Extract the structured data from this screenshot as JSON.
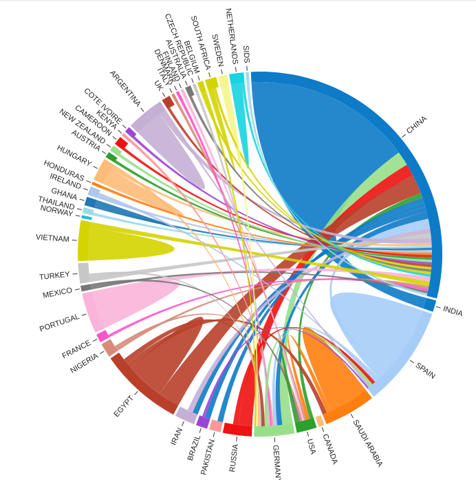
{
  "chart_data": {
    "type": "chord",
    "title": "",
    "groups": [
      {
        "name": "CHINA",
        "value": 116,
        "color": "#0d7bc8"
      },
      {
        "name": "INDIA",
        "value": 4,
        "color": "#0d7bc8"
      },
      {
        "name": "SPAIN",
        "value": 35,
        "color": "#a6cdf8"
      },
      {
        "name": "SAUDI ARABIA",
        "value": 18,
        "color": "#ff7f0e"
      },
      {
        "name": "CANADA",
        "value": 2,
        "color": "#ffbb78"
      },
      {
        "name": "USA",
        "value": 7,
        "color": "#2ca02c"
      },
      {
        "name": "GERMANY",
        "value": 14,
        "color": "#98df8a"
      },
      {
        "name": "RUSSIA",
        "value": 10,
        "color": "#ee1111"
      },
      {
        "name": "PAKISTAN",
        "value": 4,
        "color": "#ff9896"
      },
      {
        "name": "BRAZIL",
        "value": 4,
        "color": "#9b45d8"
      },
      {
        "name": "IRAN",
        "value": 7,
        "color": "#c5b0d5"
      },
      {
        "name": "EGYPT",
        "value": 29,
        "color": "#b8402a"
      },
      {
        "name": "NIGERIA",
        "value": 5,
        "color": "#d98a78"
      },
      {
        "name": "FRANCE",
        "value": 3,
        "color": "#ff55cc"
      },
      {
        "name": "PORTUGAL",
        "value": 14,
        "color": "#fbb4d9"
      },
      {
        "name": "MEXICO",
        "value": 2,
        "color": "#777777"
      },
      {
        "name": "TURKEY",
        "value": 7,
        "color": "#c7c7c7"
      },
      {
        "name": "VIETNAM",
        "value": 14,
        "color": "#d4d400"
      },
      {
        "name": "NORWAY",
        "value": 1,
        "color": "#17becf"
      },
      {
        "name": "THAILAND",
        "value": 2,
        "color": "#9edae5"
      },
      {
        "name": "GHANA",
        "value": 3,
        "color": "#1f77b4"
      },
      {
        "name": "IRELAND",
        "value": 3,
        "color": "#aec7e8"
      },
      {
        "name": "HONDURAS",
        "value": 1,
        "color": "#ff7f0e"
      },
      {
        "name": "HUNGARY",
        "value": 8,
        "color": "#ffbb78"
      },
      {
        "name": "AUSTRIA",
        "value": 2,
        "color": "#2ca02c"
      },
      {
        "name": "NEW ZEALAND",
        "value": 2,
        "color": "#98df8a"
      },
      {
        "name": "CAMEROON",
        "value": 3,
        "color": "#ee1111"
      },
      {
        "name": "KENYA",
        "value": 1,
        "color": "#ff9896"
      },
      {
        "name": "COTE IVOIRE",
        "value": 2,
        "color": "#9b45d8"
      },
      {
        "name": "ARGENTINA",
        "value": 13,
        "color": "#c5b0d5"
      },
      {
        "name": "UK",
        "value": 3,
        "color": "#b8402a"
      },
      {
        "name": "ITALY",
        "value": 1,
        "color": "#d98a78"
      },
      {
        "name": "DENMARK",
        "value": 1,
        "color": "#ff55cc"
      },
      {
        "name": "FINLAND",
        "value": 1,
        "color": "#fbb4d9"
      },
      {
        "name": "AUSTRALIA",
        "value": 2,
        "color": "#777777"
      },
      {
        "name": "CZECH REPUBLIC",
        "value": 1,
        "color": "#c7c7c7"
      },
      {
        "name": "BELGIUM",
        "value": 2,
        "color": "#d4d400"
      },
      {
        "name": "SOUTH AFRICA",
        "value": 4,
        "color": "#d4d400"
      },
      {
        "name": "SWEDEN",
        "value": 3,
        "color": "#f5f58a"
      },
      {
        "name": "NETHERLANDS",
        "value": 5,
        "color": "#17d4e0"
      },
      {
        "name": "SIDS",
        "value": 1,
        "color": "#9edae5"
      }
    ],
    "flows": [
      {
        "source": "CHINA",
        "target": "INDIA",
        "value": 70
      },
      {
        "source": "SPAIN",
        "target": "SPAIN",
        "value": 22
      },
      {
        "source": "SAUDI ARABIA",
        "target": "SAUDI ARABIA",
        "value": 9
      },
      {
        "source": "GERMANY",
        "target": "CHINA",
        "value": 6
      },
      {
        "source": "RUSSIA",
        "target": "CHINA",
        "value": 5
      },
      {
        "source": "EGYPT",
        "target": "CHINA",
        "value": 8
      },
      {
        "source": "EGYPT",
        "target": "EGYPT",
        "value": 7
      },
      {
        "source": "USA",
        "target": "CHINA",
        "value": 2
      },
      {
        "source": "VIETNAM",
        "target": "VIETNAM",
        "value": 6
      },
      {
        "source": "ARGENTINA",
        "target": "ARGENTINA",
        "value": 6
      },
      {
        "source": "HUNGARY",
        "target": "HUNGARY",
        "value": 3
      },
      {
        "source": "PORTUGAL",
        "target": "PORTUGAL",
        "value": 6
      },
      {
        "source": "SWEDEN",
        "target": "SWEDEN",
        "value": 1
      },
      {
        "source": "NETHERLANDS",
        "target": "NETHERLANDS",
        "value": 2
      },
      {
        "source": "SOUTH AFRICA",
        "target": "SOUTH AFRICA",
        "value": 1
      },
      {
        "source": "CHINA",
        "target": "PAKISTAN",
        "value": 2
      },
      {
        "source": "CHINA",
        "target": "BRAZIL",
        "value": 2
      },
      {
        "source": "CHINA",
        "target": "IRAN",
        "value": 2
      },
      {
        "source": "CHINA",
        "target": "GERMANY",
        "value": 3
      },
      {
        "source": "SPAIN",
        "target": "CHINA",
        "value": 4
      },
      {
        "source": "SPAIN",
        "target": "GERMANY",
        "value": 2
      },
      {
        "source": "SAUDI ARABIA",
        "target": "USA",
        "value": 2
      },
      {
        "source": "IRAN",
        "target": "CHINA",
        "value": 2
      },
      {
        "source": "TURKEY",
        "target": "CHINA",
        "value": 2
      },
      {
        "source": "ARGENTINA",
        "target": "CHINA",
        "value": 2
      },
      {
        "source": "HUNGARY",
        "target": "CHINA",
        "value": 1
      },
      {
        "source": "THAILAND",
        "target": "CHINA",
        "value": 1
      },
      {
        "source": "GHANA",
        "target": "CHINA",
        "value": 1
      },
      {
        "source": "IRELAND",
        "target": "CHINA",
        "value": 1
      },
      {
        "source": "HONDURAS",
        "target": "CHINA",
        "value": 1
      },
      {
        "source": "CAMEROON",
        "target": "CHINA",
        "value": 1
      },
      {
        "source": "AUSTRIA",
        "target": "CHINA",
        "value": 1
      },
      {
        "source": "NEW ZEALAND",
        "target": "CHINA",
        "value": 1
      },
      {
        "source": "COTE IVOIRE",
        "target": "CHINA",
        "value": 1
      },
      {
        "source": "UK",
        "target": "CHINA",
        "value": 1
      },
      {
        "source": "BELGIUM",
        "target": "CHINA",
        "value": 1
      },
      {
        "source": "AUSTRALIA",
        "target": "CHINA",
        "value": 1
      },
      {
        "source": "SOUTH AFRICA",
        "target": "CHINA",
        "value": 1
      },
      {
        "source": "NETHERLANDS",
        "target": "CHINA",
        "value": 1
      },
      {
        "source": "PORTUGAL",
        "target": "CHINA",
        "value": 2
      },
      {
        "source": "VIETNAM",
        "target": "CHINA",
        "value": 2
      },
      {
        "source": "NIGERIA",
        "target": "CHINA",
        "value": 1
      },
      {
        "source": "FRANCE",
        "target": "CHINA",
        "value": 1
      },
      {
        "source": "MEXICO",
        "target": "CHINA",
        "value": 1
      },
      {
        "source": "SIDS",
        "target": "CHINA",
        "value": 1
      },
      {
        "source": "KENYA",
        "target": "GERMANY",
        "value": 1
      },
      {
        "source": "ITALY",
        "target": "USA",
        "value": 1
      },
      {
        "source": "DENMARK",
        "target": "GERMANY",
        "value": 1
      },
      {
        "source": "FINLAND",
        "target": "USA",
        "value": 1
      },
      {
        "source": "CZECH REPUBLIC",
        "target": "GERMANY",
        "value": 1
      },
      {
        "source": "GHANA",
        "target": "GHANA",
        "value": 1
      },
      {
        "source": "IRELAND",
        "target": "SPAIN",
        "value": 1
      },
      {
        "source": "EGYPT",
        "target": "SAUDI ARABIA",
        "value": 2
      },
      {
        "source": "RUSSIA",
        "target": "SPAIN",
        "value": 2
      },
      {
        "source": "GERMANY",
        "target": "SPAIN",
        "value": 2
      },
      {
        "source": "EGYPT",
        "target": "GERMANY",
        "value": 2
      },
      {
        "source": "NIGERIA",
        "target": "USA",
        "value": 1
      },
      {
        "source": "TURKEY",
        "target": "GERMANY",
        "value": 1
      },
      {
        "source": "MEXICO",
        "target": "USA",
        "value": 1
      },
      {
        "source": "HUNGARY",
        "target": "GERMANY",
        "value": 1
      },
      {
        "source": "ARGENTINA",
        "target": "SPAIN",
        "value": 1
      },
      {
        "source": "BRAZIL",
        "target": "SPAIN",
        "value": 1
      },
      {
        "source": "USA",
        "target": "USA",
        "value": 1
      },
      {
        "source": "SWEDEN",
        "target": "GERMANY",
        "value": 1
      },
      {
        "source": "BELGIUM",
        "target": "GERMANY",
        "value": 1
      }
    ]
  }
}
